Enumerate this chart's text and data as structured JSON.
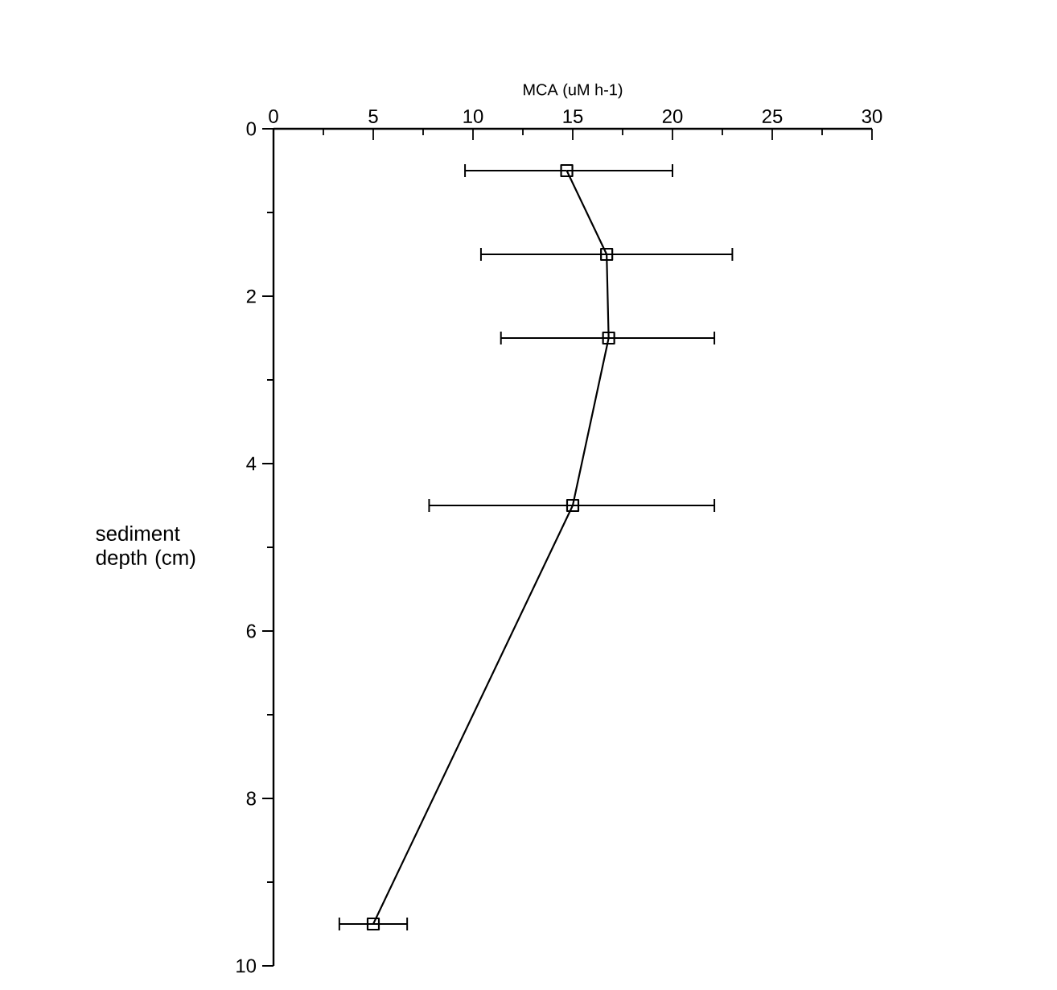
{
  "chart_data": {
    "type": "line",
    "xlabel": "MCA (uM h-1)",
    "ylabel": "sediment depth (cm)",
    "xlim": [
      0,
      30
    ],
    "ylim": [
      10,
      0
    ],
    "xticks": [
      0,
      {
        "value": 2.5,
        "label": null
      },
      5,
      {
        "value": 7.5,
        "label": null
      },
      10,
      {
        "value": 12.5,
        "label": null
      },
      15,
      {
        "value": 17.5,
        "label": null
      },
      20,
      {
        "value": 22.5,
        "label": null
      },
      25,
      {
        "value": 27.5,
        "label": null
      },
      30
    ],
    "yticks": [
      0,
      {
        "value": 1,
        "label": null
      },
      2,
      {
        "value": 3,
        "label": null
      },
      4,
      {
        "value": 5,
        "label": null
      },
      6,
      {
        "value": 7,
        "label": null
      },
      8,
      {
        "value": 9,
        "label": null
      },
      10
    ],
    "marker": "square",
    "line_style": "solid",
    "series": [
      {
        "color": "#000000",
        "x": [
          14.7,
          16.7,
          16.8,
          15.0,
          5.0
        ],
        "values": [
          0.5,
          1.5,
          2.5,
          4.5,
          9.5
        ],
        "xerrors": [
          [
            9.6,
            20.0
          ],
          [
            10.4,
            23.0
          ],
          [
            11.4,
            22.1
          ],
          [
            7.8,
            22.1
          ],
          [
            3.3,
            6.7
          ]
        ]
      }
    ]
  }
}
